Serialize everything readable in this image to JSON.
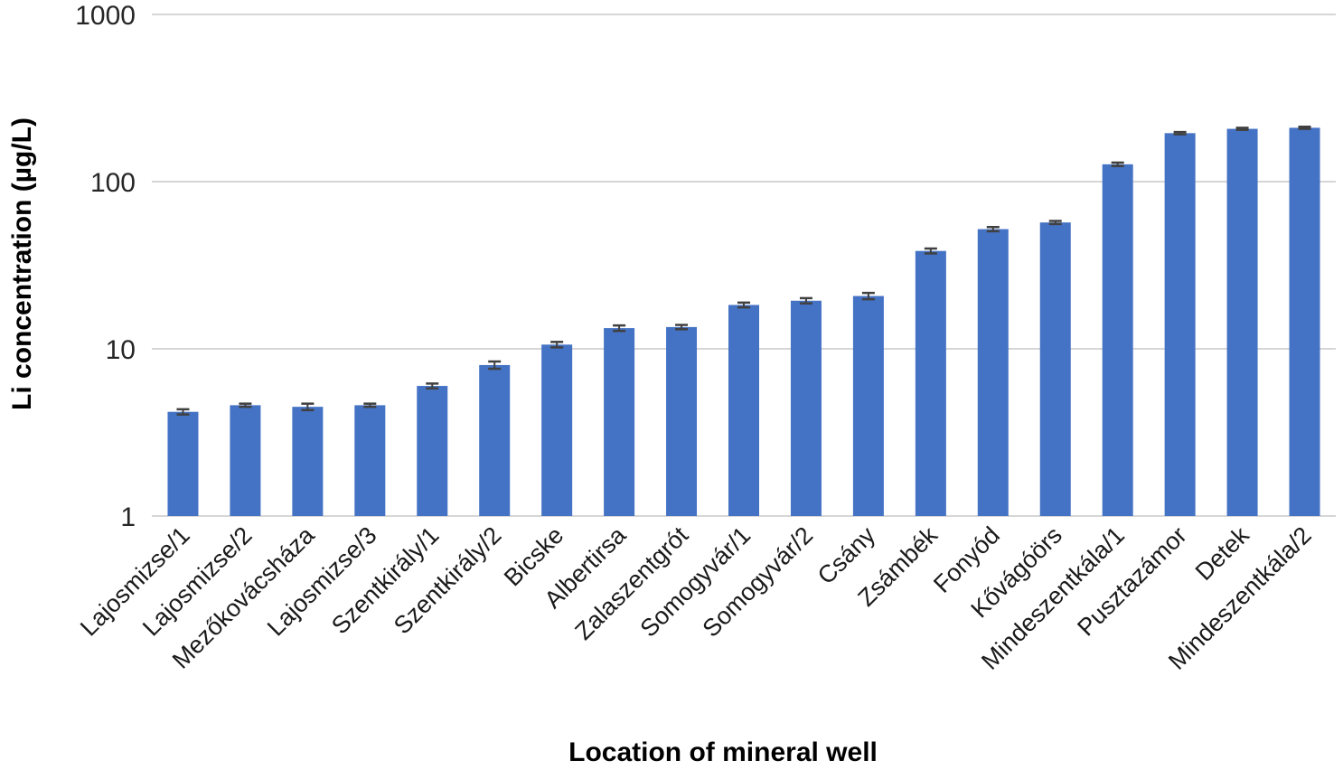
{
  "chart_data": {
    "type": "bar",
    "title": "",
    "xlabel": "Location of mineral well",
    "ylabel": "Li concentration (µg/L)",
    "y_scale": "log",
    "ylim": [
      1,
      1000
    ],
    "y_ticks": [
      1,
      10,
      100,
      1000
    ],
    "y_tick_labels": [
      "1",
      "10",
      "100",
      "1000"
    ],
    "grid": "horizontal",
    "legend": "none",
    "bar_color": "#4472C4",
    "grid_color": "#D6D6D6",
    "error_bar_color": "#404040",
    "tick_text_color": "#262626",
    "categories": [
      "Lajosmizse/1",
      "Lajosmizse/2",
      "Mezőkovácsháza",
      "Lajosmizse/3",
      "Szentkirály/1",
      "Szentkirály/2",
      "Bicske",
      "Albertirsa",
      "Zalaszentgrót",
      "Somogyvár/1",
      "Somogyvár/2",
      "Csány",
      "Zsámbék",
      "Fonyód",
      "Kővágóörs",
      "Mindeszentkála/1",
      "Pusztazámor",
      "Detek",
      "Mindeszentkála/2"
    ],
    "values": [
      4.2,
      4.6,
      4.5,
      4.6,
      6.0,
      8.0,
      10.6,
      13.3,
      13.5,
      18.3,
      19.4,
      20.7,
      38.5,
      52,
      57,
      127,
      195,
      207,
      210
    ],
    "errors": [
      0.15,
      0.1,
      0.2,
      0.1,
      0.2,
      0.4,
      0.4,
      0.5,
      0.4,
      0.6,
      0.7,
      0.9,
      1.3,
      1.5,
      1.2,
      3,
      3,
      3,
      3
    ]
  }
}
